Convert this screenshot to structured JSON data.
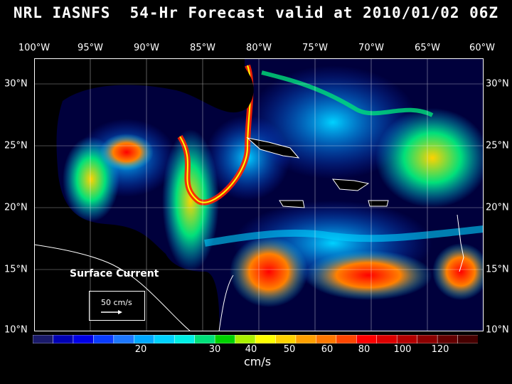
{
  "title": "NRL IASNFS  54-Hr Forecast valid at 2010/01/02 06Z",
  "lon_labels": [
    "100°W",
    "95°W",
    "90°W",
    "85°W",
    "80°W",
    "75°W",
    "70°W",
    "65°W",
    "60°W"
  ],
  "lat_labels": [
    "30°N",
    "25°N",
    "20°N",
    "15°N",
    "10°N"
  ],
  "map": {
    "label": "Surface Current",
    "reference_vector": "50 cm/s",
    "extent": {
      "lon_min": -100,
      "lon_max": -60,
      "lat_min": 10,
      "lat_max": 31
    }
  },
  "colorbar": {
    "unit": "cm/s",
    "tick_labels": [
      "20",
      "30",
      "40",
      "50",
      "60",
      "80",
      "100",
      "120"
    ],
    "colors": [
      "#1a1a6a",
      "#0000b4",
      "#0000e6",
      "#0a3cff",
      "#1e78ff",
      "#00a8ff",
      "#00d2ff",
      "#00f0e6",
      "#00e07a",
      "#00d200",
      "#aaf000",
      "#ffff00",
      "#ffd200",
      "#ffa000",
      "#ff7800",
      "#ff4600",
      "#ff0000",
      "#dc0000",
      "#b40000",
      "#8c0000",
      "#640000",
      "#460000"
    ]
  },
  "colors": {
    "ocean_deep": "#00003c",
    "land": "#000000",
    "coast": "#ffffff",
    "grid": "#ffffff"
  }
}
